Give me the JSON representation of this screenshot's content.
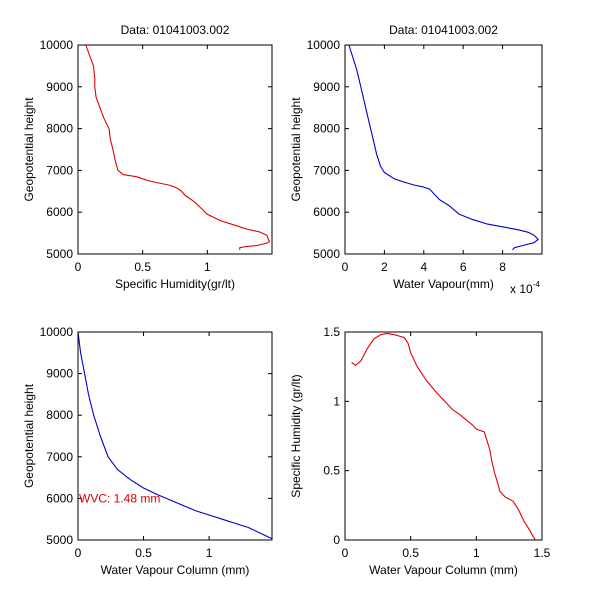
{
  "window": {
    "background": "#ffffff"
  },
  "chart_data": [
    {
      "type": "line",
      "title": "Data: 01041003.002",
      "xlabel": "Specific Humidity(gr/lt)",
      "ylabel": "Geopotential height",
      "xlim": [
        0,
        1.5
      ],
      "ylim": [
        5000,
        10000
      ],
      "xticks": [
        0,
        0.5,
        1
      ],
      "xtick_labels": [
        "0",
        "0.5",
        "1"
      ],
      "yticks": [
        5000,
        6000,
        7000,
        8000,
        9000,
        10000
      ],
      "ytick_labels": [
        "5000",
        "6000",
        "7000",
        "8000",
        "9000",
        "10000"
      ],
      "color": "#e00000",
      "series": [
        {
          "points": [
            [
              0.06,
              10000
            ],
            [
              0.09,
              9750
            ],
            [
              0.12,
              9500
            ],
            [
              0.13,
              9200
            ],
            [
              0.13,
              9000
            ],
            [
              0.14,
              8750
            ],
            [
              0.17,
              8500
            ],
            [
              0.2,
              8250
            ],
            [
              0.24,
              8000
            ],
            [
              0.25,
              7750
            ],
            [
              0.27,
              7500
            ],
            [
              0.29,
              7200
            ],
            [
              0.31,
              7000
            ],
            [
              0.35,
              6900
            ],
            [
              0.45,
              6850
            ],
            [
              0.55,
              6750
            ],
            [
              0.62,
              6700
            ],
            [
              0.7,
              6650
            ],
            [
              0.75,
              6600
            ],
            [
              0.78,
              6550
            ],
            [
              0.8,
              6500
            ],
            [
              0.83,
              6400
            ],
            [
              0.9,
              6250
            ],
            [
              0.95,
              6100
            ],
            [
              1.0,
              5950
            ],
            [
              1.1,
              5800
            ],
            [
              1.2,
              5700
            ],
            [
              1.3,
              5600
            ],
            [
              1.4,
              5530
            ],
            [
              1.46,
              5450
            ],
            [
              1.48,
              5300
            ],
            [
              1.46,
              5260
            ],
            [
              1.38,
              5200
            ],
            [
              1.3,
              5180
            ],
            [
              1.25,
              5150
            ],
            [
              1.25,
              5100
            ]
          ]
        }
      ]
    },
    {
      "type": "line",
      "title": "Data: 01041003.002",
      "xlabel": "Water Vapour(mm)",
      "ylabel": "Geopotential height",
      "multiplier_label": "x 10",
      "multiplier_exp": "-4",
      "xlim": [
        0,
        10
      ],
      "ylim": [
        5000,
        10000
      ],
      "xticks": [
        0,
        2,
        4,
        6,
        8
      ],
      "xtick_labels": [
        "0",
        "2",
        "4",
        "6",
        "8"
      ],
      "yticks": [
        5000,
        6000,
        7000,
        8000,
        9000,
        10000
      ],
      "ytick_labels": [
        "5000",
        "6000",
        "7000",
        "8000",
        "9000",
        "10000"
      ],
      "color": "#0000cc",
      "series": [
        {
          "points": [
            [
              0.2,
              10000
            ],
            [
              0.4,
              9700
            ],
            [
              0.6,
              9400
            ],
            [
              0.8,
              9000
            ],
            [
              1.0,
              8600
            ],
            [
              1.2,
              8200
            ],
            [
              1.4,
              7800
            ],
            [
              1.6,
              7400
            ],
            [
              1.8,
              7100
            ],
            [
              2.0,
              6950
            ],
            [
              2.5,
              6800
            ],
            [
              3.0,
              6720
            ],
            [
              3.5,
              6650
            ],
            [
              4.0,
              6600
            ],
            [
              4.3,
              6550
            ],
            [
              4.5,
              6450
            ],
            [
              4.8,
              6300
            ],
            [
              5.3,
              6150
            ],
            [
              5.8,
              5950
            ],
            [
              6.5,
              5820
            ],
            [
              7.2,
              5720
            ],
            [
              8.0,
              5650
            ],
            [
              8.8,
              5580
            ],
            [
              9.3,
              5520
            ],
            [
              9.6,
              5450
            ],
            [
              9.8,
              5350
            ],
            [
              9.6,
              5270
            ],
            [
              9.0,
              5200
            ],
            [
              8.6,
              5150
            ],
            [
              8.5,
              5100
            ]
          ]
        }
      ]
    },
    {
      "type": "line",
      "title": "",
      "xlabel": "Water Vapour Column (mm)",
      "ylabel": "Geopotential height",
      "annotation": "WVC: 1.48 mm",
      "annotation_color": "#e00000",
      "xlim": [
        0,
        1.48
      ],
      "ylim": [
        5000,
        10000
      ],
      "xticks": [
        0,
        0.5,
        1
      ],
      "xtick_labels": [
        "0",
        "0.5",
        "1"
      ],
      "yticks": [
        5000,
        6000,
        7000,
        8000,
        9000,
        10000
      ],
      "ytick_labels": [
        "5000",
        "6000",
        "7000",
        "8000",
        "9000",
        "10000"
      ],
      "color": "#0000cc",
      "series": [
        {
          "points": [
            [
              0.0,
              10000
            ],
            [
              0.02,
              9500
            ],
            [
              0.05,
              9000
            ],
            [
              0.08,
              8500
            ],
            [
              0.12,
              8000
            ],
            [
              0.17,
              7500
            ],
            [
              0.23,
              7000
            ],
            [
              0.3,
              6700
            ],
            [
              0.4,
              6450
            ],
            [
              0.5,
              6250
            ],
            [
              0.6,
              6100
            ],
            [
              0.75,
              5900
            ],
            [
              0.9,
              5700
            ],
            [
              1.0,
              5600
            ],
            [
              1.1,
              5500
            ],
            [
              1.2,
              5400
            ],
            [
              1.3,
              5300
            ],
            [
              1.4,
              5150
            ],
            [
              1.48,
              5030
            ]
          ]
        }
      ]
    },
    {
      "type": "line",
      "title": "",
      "xlabel": "Water Vapour Column (mm)",
      "ylabel": "Specific Humidity (gr/lt)",
      "xlim": [
        0,
        1.5
      ],
      "ylim": [
        0,
        1.5
      ],
      "xticks": [
        0,
        0.5,
        1,
        1.5
      ],
      "xtick_labels": [
        "0",
        "0.5",
        "1",
        "1.5"
      ],
      "yticks": [
        0,
        0.5,
        1,
        1.5
      ],
      "ytick_labels": [
        "0",
        "0.5",
        "1",
        "1.5"
      ],
      "color": "#e00000",
      "series": [
        {
          "points": [
            [
              0.05,
              1.28
            ],
            [
              0.08,
              1.26
            ],
            [
              0.12,
              1.29
            ],
            [
              0.17,
              1.38
            ],
            [
              0.22,
              1.45
            ],
            [
              0.27,
              1.48
            ],
            [
              0.32,
              1.49
            ],
            [
              0.38,
              1.48
            ],
            [
              0.45,
              1.46
            ],
            [
              0.48,
              1.42
            ],
            [
              0.5,
              1.35
            ],
            [
              0.55,
              1.25
            ],
            [
              0.62,
              1.15
            ],
            [
              0.7,
              1.06
            ],
            [
              0.76,
              1.0
            ],
            [
              0.82,
              0.94
            ],
            [
              0.88,
              0.9
            ],
            [
              0.93,
              0.86
            ],
            [
              0.97,
              0.83
            ],
            [
              1.0,
              0.8
            ],
            [
              1.03,
              0.79
            ],
            [
              1.06,
              0.78
            ],
            [
              1.08,
              0.72
            ],
            [
              1.1,
              0.66
            ],
            [
              1.12,
              0.56
            ],
            [
              1.14,
              0.48
            ],
            [
              1.16,
              0.42
            ],
            [
              1.18,
              0.35
            ],
            [
              1.22,
              0.31
            ],
            [
              1.28,
              0.28
            ],
            [
              1.32,
              0.22
            ],
            [
              1.36,
              0.14
            ],
            [
              1.4,
              0.08
            ],
            [
              1.43,
              0.03
            ],
            [
              1.45,
              0.0
            ]
          ]
        }
      ]
    }
  ]
}
